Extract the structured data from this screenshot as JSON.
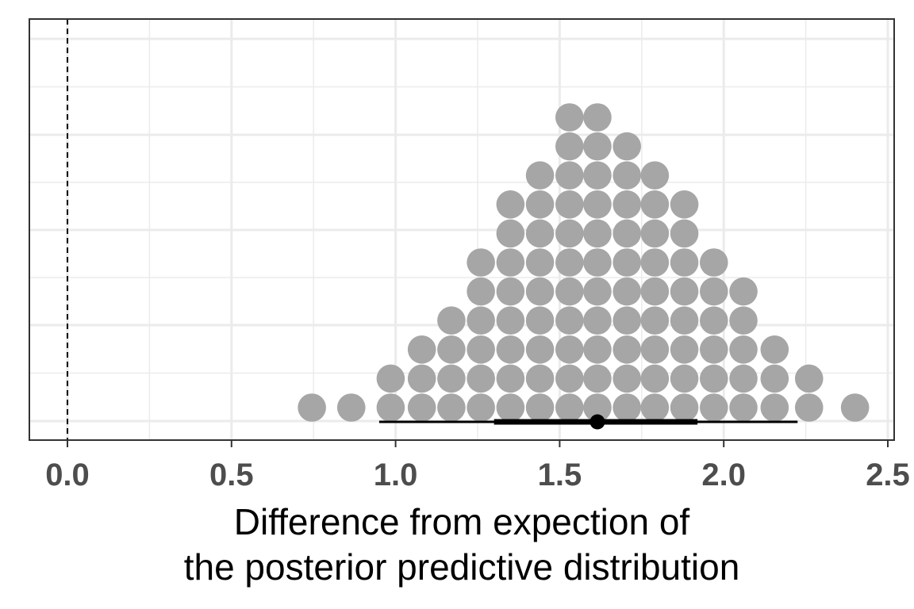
{
  "chart_data": {
    "type": "dotplot",
    "title": "",
    "xlabel_lines": [
      "Difference from expection of",
      "the posterior predictive distribution"
    ],
    "ylabel": "",
    "xlim": [
      -0.12,
      2.52
    ],
    "x_ticks": [
      "0.0",
      "0.5",
      "1.0",
      "1.5",
      "2.0",
      "2.5"
    ],
    "x_tick_values": [
      0,
      0.5,
      1.0,
      1.5,
      2.0,
      2.5
    ],
    "grid": true,
    "reference_line": {
      "x": 0,
      "style": "dashed"
    },
    "dot_color": "#a6a6a6",
    "bin_width": 0.0885,
    "dot_columns": [
      {
        "x": 0.745,
        "count": 1
      },
      {
        "x": 0.865,
        "count": 1
      },
      {
        "x": 0.985,
        "count": 2
      },
      {
        "x": 1.08,
        "count": 3
      },
      {
        "x": 1.17,
        "count": 4
      },
      {
        "x": 1.26,
        "count": 6
      },
      {
        "x": 1.35,
        "count": 8
      },
      {
        "x": 1.44,
        "count": 9
      },
      {
        "x": 1.53,
        "count": 11
      },
      {
        "x": 1.615,
        "count": 11
      },
      {
        "x": 1.705,
        "count": 10
      },
      {
        "x": 1.79,
        "count": 9
      },
      {
        "x": 1.88,
        "count": 8
      },
      {
        "x": 1.97,
        "count": 6
      },
      {
        "x": 2.06,
        "count": 5
      },
      {
        "x": 2.155,
        "count": 3
      },
      {
        "x": 2.26,
        "count": 2
      },
      {
        "x": 2.4,
        "count": 1
      }
    ],
    "point_interval": {
      "point": 1.615,
      "inner": [
        1.3,
        1.92
      ],
      "outer": [
        0.95,
        2.225
      ]
    },
    "colors": {
      "interval": "#000000",
      "panel_border": "#333333",
      "grid": "#ebebeb"
    }
  }
}
